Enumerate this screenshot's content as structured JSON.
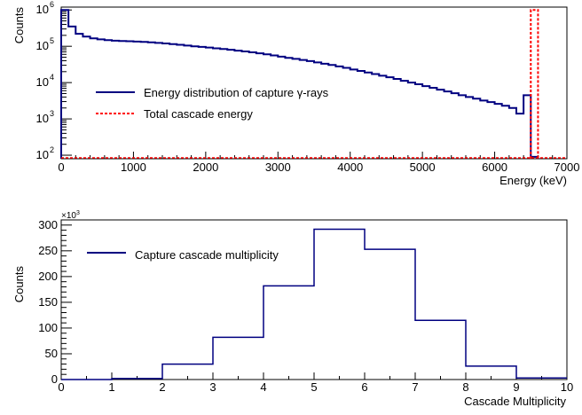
{
  "chart_data": [
    {
      "type": "step",
      "title": "",
      "xlabel": "Energy (keV)",
      "ylabel": "Counts",
      "xlim": [
        0,
        7000
      ],
      "ylim": [
        80,
        1200000
      ],
      "yscale": "log",
      "grid": false,
      "legend_position": "center-left",
      "xticks": [
        0,
        1000,
        2000,
        3000,
        4000,
        5000,
        6000,
        7000
      ],
      "xtick_labels": [
        "0",
        "1000",
        "2000",
        "3000",
        "4000",
        "5000",
        "6000",
        "7000"
      ],
      "yticks": [
        100,
        1000,
        10000,
        100000,
        1000000
      ],
      "ytick_labels": [
        "10",
        "10",
        "10",
        "10",
        "10"
      ],
      "ytick_exponents": [
        "2",
        "3",
        "4",
        "5",
        "6"
      ],
      "series": [
        {
          "name": "Energy distribution of capture γ-rays",
          "color": "#000080",
          "bin_edges": [
            0,
            100,
            200,
            300,
            400,
            500,
            600,
            700,
            800,
            900,
            1000,
            1100,
            1200,
            1300,
            1400,
            1500,
            1600,
            1700,
            1800,
            1900,
            2000,
            2100,
            2200,
            2300,
            2400,
            2500,
            2600,
            2700,
            2800,
            2900,
            3000,
            3100,
            3200,
            3300,
            3400,
            3500,
            3600,
            3700,
            3800,
            3900,
            4000,
            4100,
            4200,
            4300,
            4400,
            4500,
            4600,
            4700,
            4800,
            4900,
            5000,
            5100,
            5200,
            5300,
            5400,
            5500,
            5600,
            5700,
            5800,
            5900,
            6000,
            6100,
            6200,
            6300,
            6400,
            6500,
            6600
          ],
          "values": [
            1000000,
            350000,
            220000,
            185000,
            165000,
            155000,
            148000,
            143000,
            140000,
            138000,
            135000,
            132000,
            128000,
            124000,
            120000,
            115000,
            110000,
            105000,
            100000,
            96000,
            92000,
            88000,
            84000,
            80000,
            76000,
            72000,
            68000,
            64000,
            60000,
            56000,
            52000,
            48000,
            45000,
            42000,
            39000,
            36000,
            33000,
            30500,
            28000,
            25500,
            23000,
            21000,
            19000,
            17200,
            15500,
            14000,
            12600,
            11200,
            10000,
            9000,
            8000,
            7200,
            6400,
            5700,
            5100,
            4500,
            4000,
            3600,
            3200,
            2900,
            2600,
            2300,
            2000,
            1400,
            4500,
            90
          ]
        },
        {
          "name": "Total cascade energy",
          "color": "#ff0000",
          "style": "dashed",
          "bin_edges": [
            6500,
            6600
          ],
          "values": [
            1000000
          ]
        }
      ]
    },
    {
      "type": "step",
      "title": "",
      "xlabel": "Cascade Multiplicity",
      "ylabel": "Counts",
      "y_multiplier_label": "×10",
      "y_multiplier_exponent": "3",
      "xlim": [
        0,
        10
      ],
      "ylim": [
        0,
        310
      ],
      "grid": false,
      "legend_position": "top-left",
      "xticks": [
        0,
        1,
        2,
        3,
        4,
        5,
        6,
        7,
        8,
        9,
        10
      ],
      "xtick_labels": [
        "0",
        "1",
        "2",
        "3",
        "4",
        "5",
        "6",
        "7",
        "8",
        "9",
        "10"
      ],
      "yticks": [
        0,
        50,
        100,
        150,
        200,
        250,
        300
      ],
      "ytick_labels": [
        "0",
        "50",
        "100",
        "150",
        "200",
        "250",
        "300"
      ],
      "series": [
        {
          "name": "Capture cascade multiplicity",
          "color": "#000080",
          "bin_edges": [
            0,
            1,
            2,
            3,
            4,
            5,
            6,
            7,
            8,
            9,
            10
          ],
          "values": [
            0,
            2,
            30,
            82,
            182,
            292,
            253,
            115,
            26,
            3
          ]
        }
      ]
    }
  ]
}
